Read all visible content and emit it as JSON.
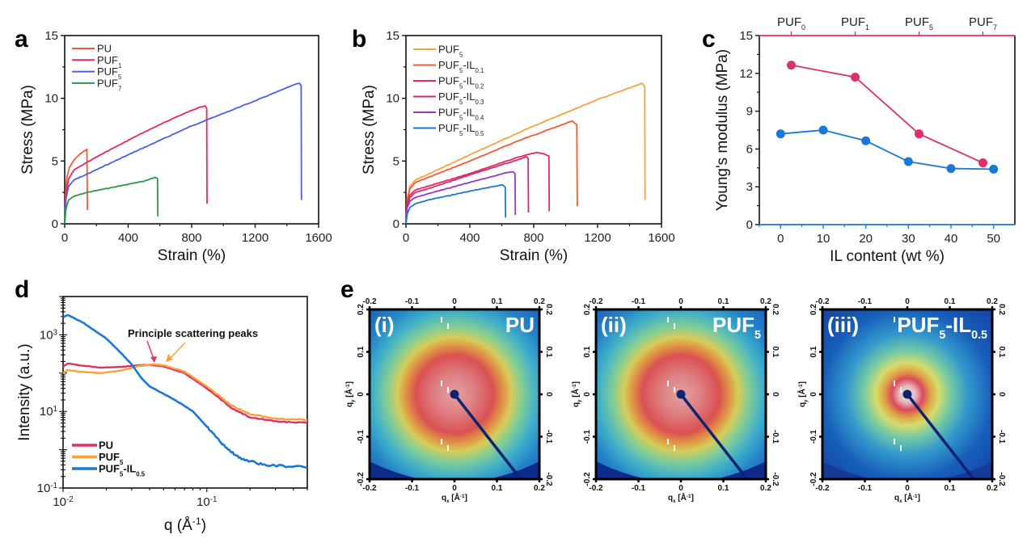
{
  "chart_data": [
    {
      "panel": "a",
      "type": "line",
      "xlabel": "Strain (%)",
      "ylabel": "Stress (MPa)",
      "xlim": [
        0,
        1600
      ],
      "ylim": [
        0,
        15
      ],
      "xticks": [
        "0",
        "400",
        "800",
        "1200",
        "1600"
      ],
      "yticks": [
        "0",
        "5",
        "10",
        "15"
      ],
      "legend_position": "top-left",
      "series": [
        {
          "name": "PU",
          "sub": "",
          "color": "#f05a3a",
          "points": [
            [
              0,
              0
            ],
            [
              5,
              2.5
            ],
            [
              15,
              3.8
            ],
            [
              30,
              4.5
            ],
            [
              60,
              5.1
            ],
            [
              100,
              5.6
            ],
            [
              140,
              5.95
            ],
            [
              143,
              1.1
            ]
          ]
        },
        {
          "name": "PUF",
          "sub": "1",
          "color": "#e8285e",
          "points": [
            [
              0,
              0
            ],
            [
              8,
              2.4
            ],
            [
              25,
              3.6
            ],
            [
              60,
              4.3
            ],
            [
              140,
              4.9
            ],
            [
              300,
              6.0
            ],
            [
              500,
              7.3
            ],
            [
              700,
              8.5
            ],
            [
              850,
              9.3
            ],
            [
              885,
              9.4
            ],
            [
              895,
              9.2
            ],
            [
              897,
              1.6
            ]
          ]
        },
        {
          "name": "PUF",
          "sub": "5",
          "color": "#4a5ee8",
          "points": [
            [
              0,
              0
            ],
            [
              8,
              2.0
            ],
            [
              25,
              3.0
            ],
            [
              60,
              3.5
            ],
            [
              140,
              3.95
            ],
            [
              400,
              5.5
            ],
            [
              800,
              7.8
            ],
            [
              1200,
              9.8
            ],
            [
              1450,
              11.1
            ],
            [
              1480,
              11.2
            ],
            [
              1490,
              11.0
            ],
            [
              1492,
              1.9
            ]
          ]
        },
        {
          "name": "PUF",
          "sub": "7",
          "color": "#2a9a40",
          "points": [
            [
              0,
              0
            ],
            [
              8,
              1.2
            ],
            [
              25,
              1.9
            ],
            [
              60,
              2.2
            ],
            [
              140,
              2.5
            ],
            [
              300,
              2.9
            ],
            [
              500,
              3.4
            ],
            [
              570,
              3.7
            ],
            [
              585,
              3.6
            ],
            [
              587,
              0.6
            ]
          ]
        }
      ]
    },
    {
      "panel": "b",
      "type": "line",
      "xlabel": "Strain (%)",
      "ylabel": "Stress (MPa)",
      "xlim": [
        0,
        1600
      ],
      "ylim": [
        0,
        15
      ],
      "xticks": [
        "0",
        "400",
        "800",
        "1200",
        "1600"
      ],
      "yticks": [
        "0",
        "5",
        "10",
        "15"
      ],
      "legend_position": "top-left",
      "series": [
        {
          "name": "PUF",
          "sub": "5",
          "il": "",
          "color": "#f8a23a",
          "points": [
            [
              0,
              0
            ],
            [
              8,
              2.0
            ],
            [
              25,
              3.0
            ],
            [
              60,
              3.5
            ],
            [
              140,
              3.95
            ],
            [
              400,
              5.5
            ],
            [
              800,
              7.8
            ],
            [
              1200,
              9.9
            ],
            [
              1460,
              11.1
            ],
            [
              1480,
              11.2
            ],
            [
              1495,
              10.9
            ],
            [
              1497,
              1.9
            ]
          ]
        },
        {
          "name": "PUF",
          "sub": "5",
          "il": "0.1",
          "color": "#f05a3a",
          "points": [
            [
              0,
              0
            ],
            [
              8,
              1.9
            ],
            [
              25,
              2.8
            ],
            [
              60,
              3.3
            ],
            [
              140,
              3.7
            ],
            [
              400,
              5.0
            ],
            [
              700,
              6.6
            ],
            [
              1000,
              8.0
            ],
            [
              1040,
              8.2
            ],
            [
              1070,
              7.9
            ],
            [
              1073,
              1.4
            ]
          ]
        },
        {
          "name": "PUF",
          "sub": "5",
          "il": "0.2",
          "color": "#e82858",
          "points": [
            [
              0,
              0
            ],
            [
              8,
              1.6
            ],
            [
              25,
              2.3
            ],
            [
              60,
              2.7
            ],
            [
              140,
              3.0
            ],
            [
              400,
              4.0
            ],
            [
              700,
              5.3
            ],
            [
              820,
              5.7
            ],
            [
              860,
              5.6
            ],
            [
              895,
              5.4
            ],
            [
              897,
              1.0
            ]
          ]
        },
        {
          "name": "PUF",
          "sub": "5",
          "il": "0.3",
          "color": "#d02a7a",
          "points": [
            [
              0,
              0
            ],
            [
              8,
              1.5
            ],
            [
              25,
              2.1
            ],
            [
              60,
              2.5
            ],
            [
              140,
              2.8
            ],
            [
              400,
              3.9
            ],
            [
              700,
              5.1
            ],
            [
              755,
              5.35
            ],
            [
              765,
              5.2
            ],
            [
              767,
              0.9
            ]
          ]
        },
        {
          "name": "PUF",
          "sub": "5",
          "il": "0.4",
          "color": "#9a36c8",
          "points": [
            [
              0,
              0
            ],
            [
              8,
              1.3
            ],
            [
              25,
              1.8
            ],
            [
              60,
              2.1
            ],
            [
              140,
              2.4
            ],
            [
              400,
              3.3
            ],
            [
              640,
              4.1
            ],
            [
              670,
              4.15
            ],
            [
              683,
              4.0
            ],
            [
              685,
              0.7
            ]
          ]
        },
        {
          "name": "PUF",
          "sub": "5",
          "il": "0.5",
          "color": "#1a78d8",
          "points": [
            [
              0,
              0
            ],
            [
              8,
              0.8
            ],
            [
              25,
              1.3
            ],
            [
              60,
              1.6
            ],
            [
              140,
              1.9
            ],
            [
              400,
              2.6
            ],
            [
              580,
              3.05
            ],
            [
              605,
              3.1
            ],
            [
              622,
              2.9
            ],
            [
              624,
              0.5
            ]
          ]
        }
      ]
    },
    {
      "panel": "c",
      "type": "line",
      "ylabel": "Young's modulus (MPa)",
      "xlabel": "IL content (wt %)",
      "ylim": [
        0,
        15
      ],
      "xlim": [
        -5,
        55
      ],
      "yticks": [
        "0",
        "3",
        "6",
        "9",
        "12",
        "15"
      ],
      "xticks": [
        "0",
        "10",
        "20",
        "30",
        "40",
        "50"
      ],
      "top_axis_labels": [
        {
          "name": "PUF",
          "sub": "0"
        },
        {
          "name": "PUF",
          "sub": "1"
        },
        {
          "name": "PUF",
          "sub": "5"
        },
        {
          "name": "PUF",
          "sub": "7"
        }
      ],
      "series": [
        {
          "name": "PUF series (top axis)",
          "color": "#e0306a",
          "x": [
            2.5,
            17.5,
            32.5,
            47.5
          ],
          "values": [
            12.65,
            11.7,
            7.2,
            4.9
          ]
        },
        {
          "name": "IL series (bottom axis)",
          "color": "#1a78d8",
          "x": [
            0,
            10,
            20,
            30,
            40,
            50
          ],
          "values": [
            7.2,
            7.5,
            6.65,
            5.0,
            4.45,
            4.4
          ]
        }
      ]
    },
    {
      "panel": "d",
      "type": "line",
      "xlabel": "q (Å⁻¹)",
      "ylabel": "Intensity (a.u.)",
      "xscale": "log",
      "yscale": "log",
      "xlim": [
        0.01,
        0.5
      ],
      "ylim": [
        0.1,
        10000
      ],
      "xticks": [
        {
          "base": "10",
          "exp": "-2"
        },
        {
          "base": "10",
          "exp": "-1"
        }
      ],
      "yticks": [
        {
          "base": "10",
          "exp": "-1"
        },
        {
          "base": "10",
          "exp": "1"
        },
        {
          "base": "10",
          "exp": "3"
        }
      ],
      "annotation": "Principle scattering peaks",
      "legend_position": "bottom-left",
      "series": [
        {
          "name": "PU",
          "sub": "",
          "il": "",
          "color": "#e0306a",
          "points": [
            [
              0.0098,
              140
            ],
            [
              0.0108,
              180
            ],
            [
              0.013,
              160
            ],
            [
              0.018,
              140
            ],
            [
              0.025,
              145
            ],
            [
              0.033,
              160
            ],
            [
              0.04,
              165
            ],
            [
              0.05,
              150
            ],
            [
              0.07,
              100
            ],
            [
              0.1,
              40
            ],
            [
              0.15,
              12
            ],
            [
              0.2,
              7
            ],
            [
              0.3,
              5.5
            ],
            [
              0.5,
              5
            ]
          ]
        },
        {
          "name": "PUF",
          "sub": "5",
          "il": "",
          "color": "#f8a23a",
          "points": [
            [
              0.0098,
              95
            ],
            [
              0.0108,
              120
            ],
            [
              0.013,
              110
            ],
            [
              0.018,
              100
            ],
            [
              0.025,
              115
            ],
            [
              0.033,
              150
            ],
            [
              0.042,
              170
            ],
            [
              0.05,
              160
            ],
            [
              0.07,
              110
            ],
            [
              0.1,
              45
            ],
            [
              0.15,
              14
            ],
            [
              0.2,
              8.5
            ],
            [
              0.3,
              6.5
            ],
            [
              0.5,
              6
            ]
          ]
        },
        {
          "name": "PUF",
          "sub": "5",
          "il": "0.5",
          "color": "#1a78d8",
          "points": [
            [
              0.0098,
              2800
            ],
            [
              0.0108,
              3300
            ],
            [
              0.014,
              2000
            ],
            [
              0.02,
              800
            ],
            [
              0.025,
              350
            ],
            [
              0.03,
              170
            ],
            [
              0.035,
              75
            ],
            [
              0.04,
              45
            ],
            [
              0.06,
              20
            ],
            [
              0.08,
              10
            ],
            [
              0.1,
              4
            ],
            [
              0.13,
              1.3
            ],
            [
              0.17,
              0.6
            ],
            [
              0.25,
              0.4
            ],
            [
              0.5,
              0.35
            ]
          ]
        }
      ]
    }
  ],
  "panel_e": {
    "axis_ticks": [
      "-0.2",
      "-0.1",
      "0",
      "0.1",
      "0.2"
    ],
    "xlabel": "qx [Å-1]",
    "xlabel_main": "q",
    "xlabel_sub": "x",
    "ylabel_main": "q",
    "ylabel_sub": "y",
    "unit": "[Å",
    "unit_exp": "-1",
    "unit_close": "]",
    "images": [
      {
        "tag": "(i)",
        "title": "PU",
        "sub": "",
        "il": "",
        "ring": "large"
      },
      {
        "tag": "(ii)",
        "title": "PUF",
        "sub": "5",
        "il": "",
        "ring": "large"
      },
      {
        "tag": "(iii)",
        "title": "PUF",
        "sub": "5",
        "il": "0.5",
        "ring": "small"
      }
    ]
  },
  "panel_labels": [
    "a",
    "b",
    "c",
    "d",
    "e"
  ]
}
